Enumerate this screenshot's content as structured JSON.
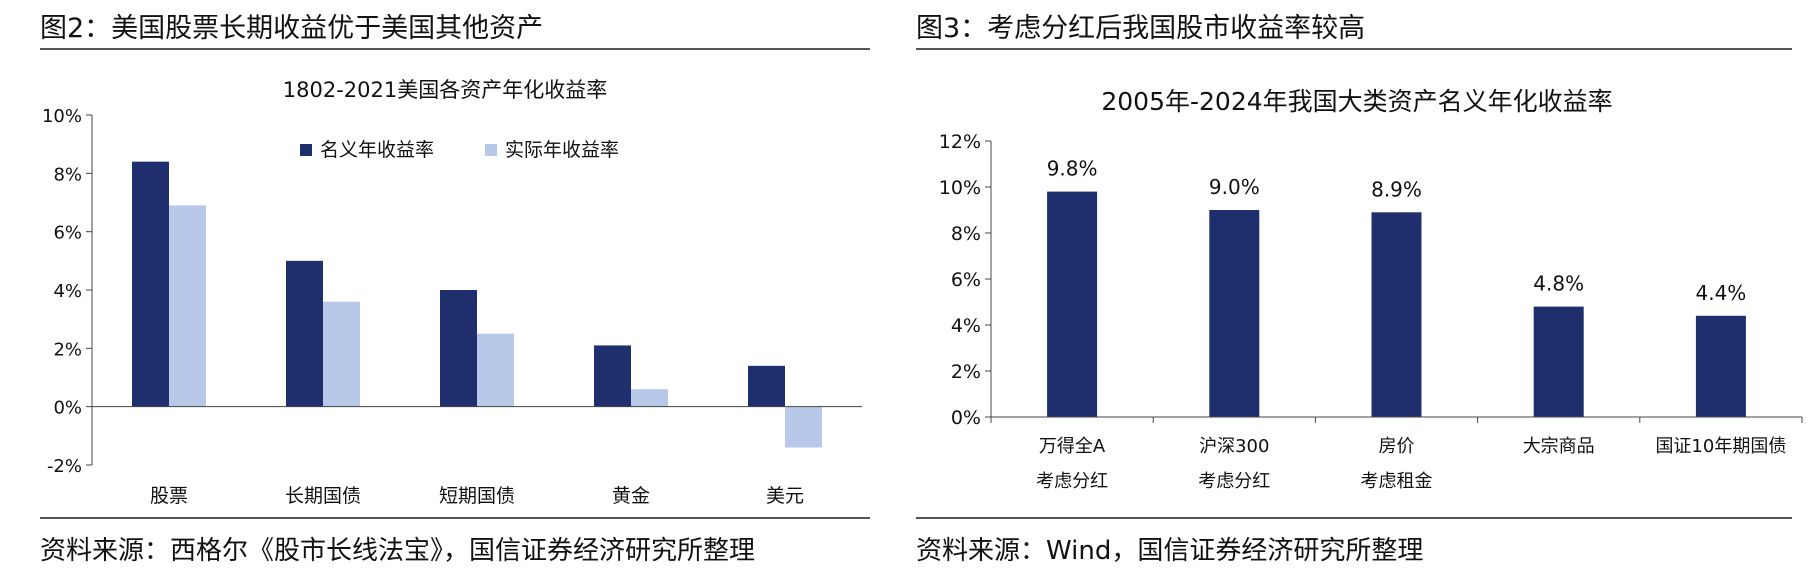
{
  "left": {
    "figure_title": "图2：美国股票长期收益优于美国其他资产",
    "source": "资料来源：西格尔《股市长线法宝》，国信证券经济研究所整理",
    "chart_data": {
      "type": "bar",
      "title": "1802-2021美国各资产年化收益率",
      "categories": [
        "股票",
        "长期国债",
        "短期国债",
        "黄金",
        "美元"
      ],
      "series": [
        {
          "name": "名义年收益率",
          "values": [
            8.4,
            5.0,
            4.0,
            2.1,
            1.4
          ]
        },
        {
          "name": "实际年收益率",
          "values": [
            6.9,
            3.6,
            2.5,
            0.6,
            -1.4
          ]
        }
      ],
      "y_tick_labels": [
        "10%",
        "8%",
        "6%",
        "4%",
        "2%",
        "0%",
        "-2%"
      ],
      "ylim": [
        -2,
        10
      ],
      "ylabel": "",
      "xlabel": "",
      "legend_position": "top-right",
      "grid": false,
      "colors": [
        "#1f2f6e",
        "#b8c8e8"
      ]
    }
  },
  "right": {
    "figure_title": "图3：考虑分红后我国股市收益率较高",
    "source": "资料来源：Wind，国信证券经济研究所整理",
    "chart_data": {
      "type": "bar",
      "title": "2005年-2024年我国大类资产名义年化收益率",
      "categories": [
        [
          "万得全A",
          "考虑分红"
        ],
        [
          "沪深300",
          "考虑分红"
        ],
        [
          "房价",
          "考虑租金"
        ],
        [
          "大宗商品"
        ],
        [
          "国证10年期国债"
        ]
      ],
      "values": [
        9.8,
        9.0,
        8.9,
        4.8,
        4.4
      ],
      "data_labels": [
        "9.8%",
        "9.0%",
        "8.9%",
        "4.8%",
        "4.4%"
      ],
      "y_tick_labels": [
        "12%",
        "10%",
        "8%",
        "6%",
        "4%",
        "2%",
        "0%"
      ],
      "ylim": [
        0,
        12
      ],
      "ylabel": "",
      "xlabel": "",
      "grid": false,
      "colors": [
        "#1f2f6e"
      ]
    }
  }
}
